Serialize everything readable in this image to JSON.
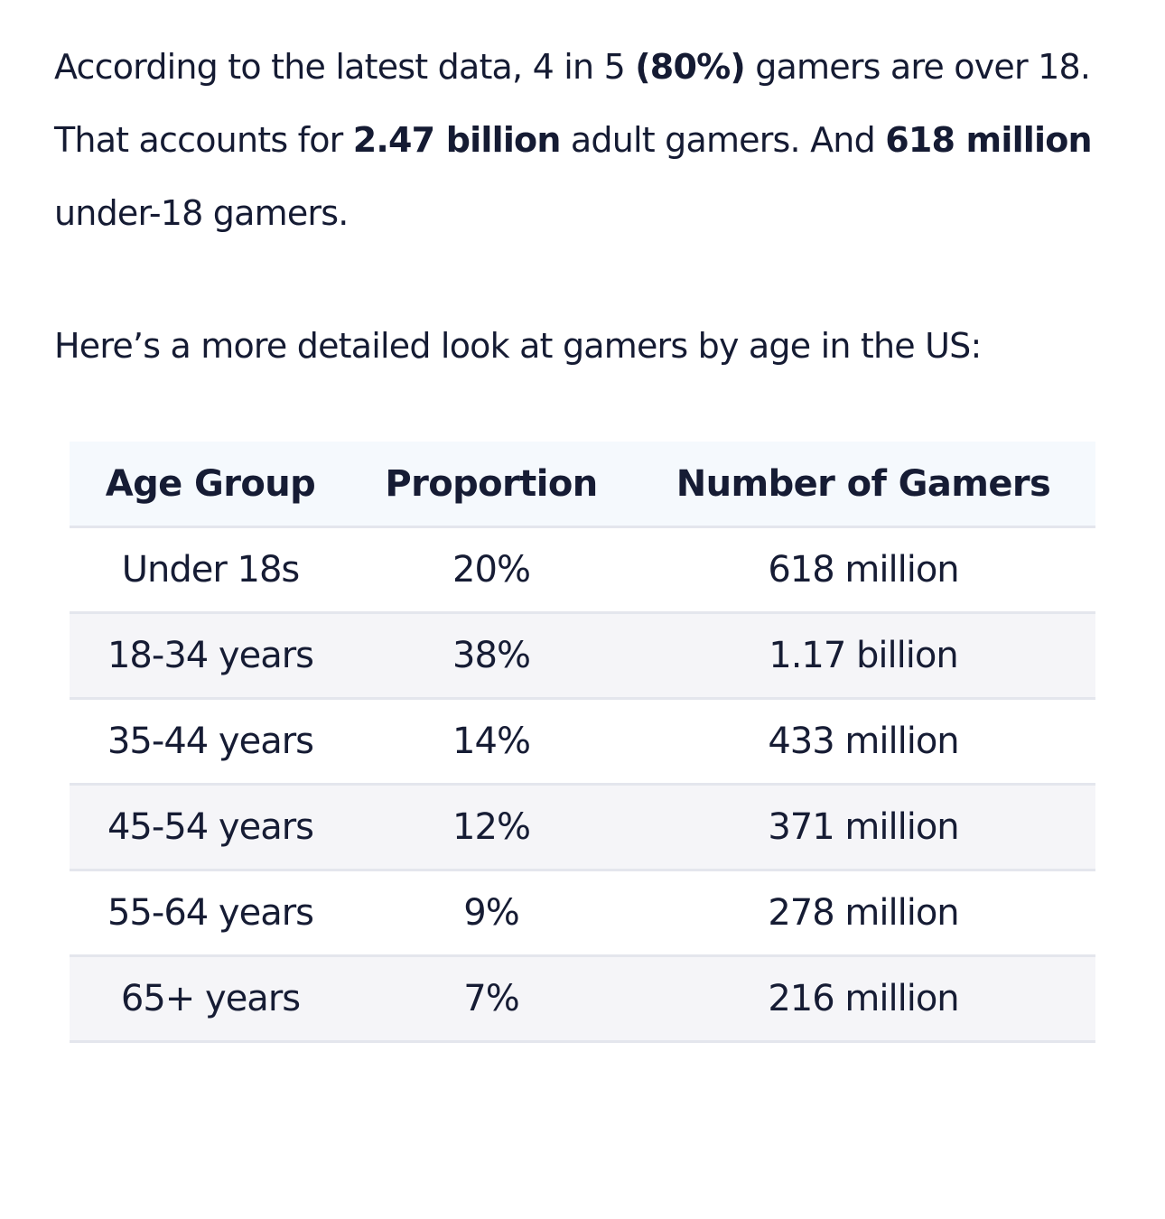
{
  "intro": {
    "p1_a": "According to the latest data, 4 in 5 ",
    "p1_b": "(80%)",
    "p1_c": " gamers are over 18. That accounts for ",
    "p1_d": "2.47 billion",
    "p1_e": " adult gamers. And ",
    "p1_f": "618 million",
    "p1_g": " under-18 gamers."
  },
  "lead": "Here’s a more detailed look at gamers by age in the US:",
  "table": {
    "headers": [
      "Age Group",
      "Proportion",
      "Number of Gamers"
    ],
    "rows": [
      [
        "Under 18s",
        "20%",
        "618 million"
      ],
      [
        "18-34 years",
        "38%",
        "1.17 billion"
      ],
      [
        "35-44 years",
        "14%",
        "433 million"
      ],
      [
        "45-54 years",
        "12%",
        "371 million"
      ],
      [
        "55-64 years",
        "9%",
        "278 million"
      ],
      [
        "65+ years",
        "7%",
        "216 million"
      ]
    ]
  }
}
